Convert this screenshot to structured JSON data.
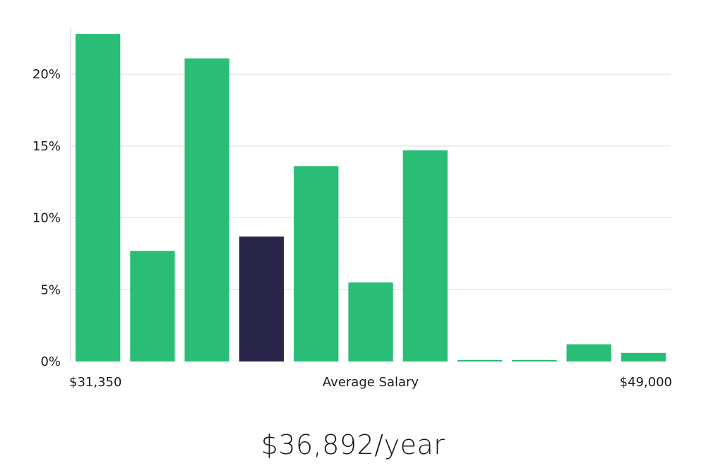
{
  "chart_data": {
    "type": "bar",
    "title": "",
    "xlabel": "Average Salary",
    "ylabel": "",
    "x_min_label": "$31,350",
    "x_max_label": "$49,000",
    "ylim": [
      0,
      23.2
    ],
    "y_ticks": [
      0,
      5,
      10,
      15,
      20
    ],
    "y_tick_labels": [
      "0%",
      "5%",
      "10%",
      "15%",
      "20%"
    ],
    "values": [
      22.8,
      7.7,
      21.1,
      8.7,
      13.6,
      5.5,
      14.7,
      0.1,
      0.1,
      1.2,
      0.6
    ],
    "highlight_index": 3,
    "colors": {
      "bar": "#2abd76",
      "highlight": "#29264a",
      "grid": "#dcdcdc",
      "axis": "#cccccc"
    }
  },
  "salary": {
    "headline": "$36,892/year"
  }
}
